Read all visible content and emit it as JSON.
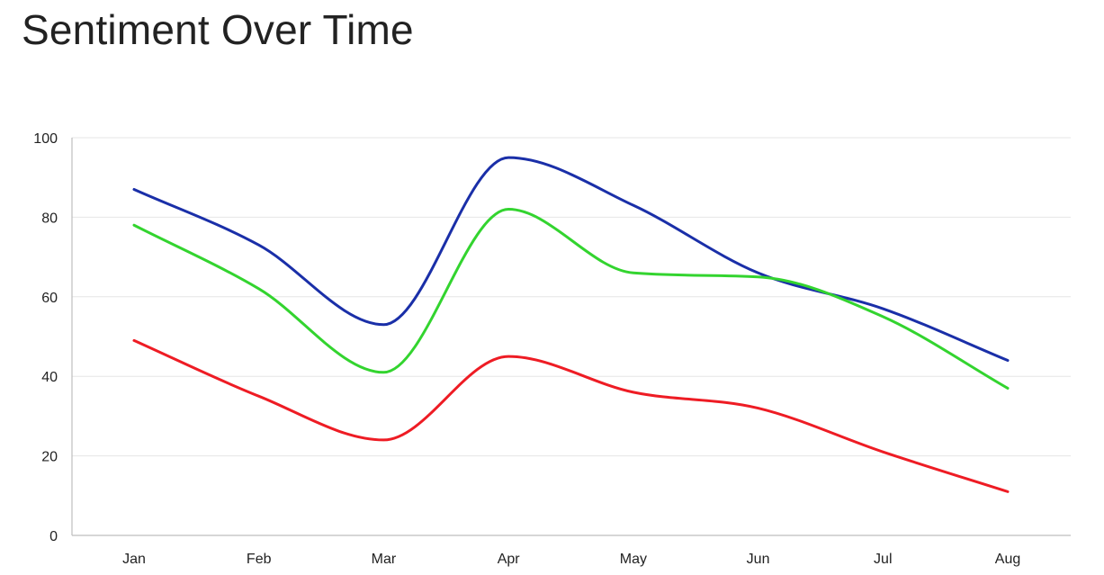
{
  "chart_data": {
    "type": "line",
    "title": "Sentiment Over Time",
    "xlabel": "",
    "ylabel": "",
    "categories": [
      "Jan",
      "Feb",
      "Mar",
      "Apr",
      "May",
      "Jun",
      "Jul",
      "Aug"
    ],
    "ylim": [
      0,
      100
    ],
    "yticks": [
      0,
      20,
      40,
      60,
      80,
      100
    ],
    "grid": true,
    "smooth": true,
    "legend": "none",
    "series": [
      {
        "color": "#1a2fa8",
        "values": [
          87,
          73,
          53,
          95,
          83,
          66,
          57,
          44
        ]
      },
      {
        "color": "#33d42f",
        "values": [
          78,
          62,
          41,
          82,
          66,
          65,
          55,
          37
        ]
      },
      {
        "color": "#ee1c24",
        "values": [
          49,
          35,
          24,
          45,
          36,
          32,
          21,
          11
        ]
      }
    ]
  }
}
